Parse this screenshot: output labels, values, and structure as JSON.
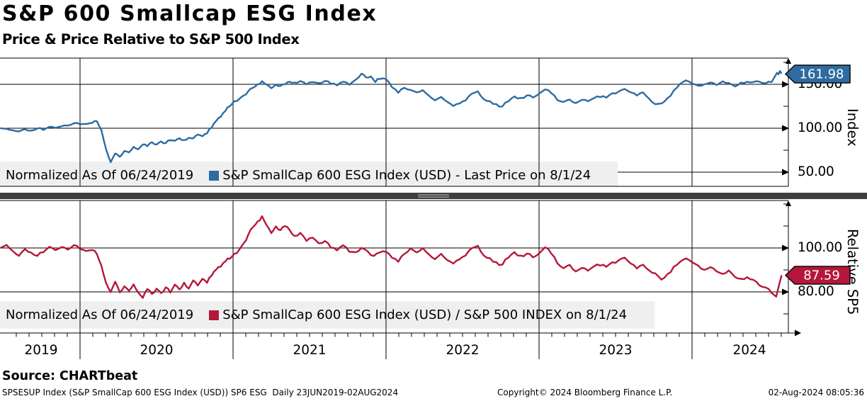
{
  "header": {
    "title": "S&P 600 Smallcap ESG Index",
    "subtitle": "Price & Price Relative to S&P 500 Index"
  },
  "panels": {
    "top": {
      "axis_title": "Index",
      "y_tick_labels": [
        "150.00",
        "100.00",
        "50.00"
      ],
      "last_price_label": "161.98",
      "line_color": "#2d6ba1",
      "legend": {
        "prefix": "Normalized As Of 06/24/2019",
        "series_label": "S&P SmallCap 600 ESG Index (USD) - Last Price on 8/1/24"
      }
    },
    "bottom": {
      "axis_title": "Relative SP5",
      "y_tick_labels": [
        "100.00",
        "80.00"
      ],
      "last_price_label": "87.59",
      "line_color": "#b5173a",
      "legend": {
        "prefix": "Normalized As Of 06/24/2019",
        "series_label": "S&P SmallCap 600 ESG Index (USD) / S&P 500 INDEX on 8/1/24"
      }
    }
  },
  "x_axis": {
    "year_labels": [
      "2019",
      "2020",
      "2021",
      "2022",
      "2023",
      "2024"
    ]
  },
  "footer": {
    "source": "Source: CHARTbeat",
    "descriptor": "SPSESUP Index (S&P SmallCap 600 ESG Index (USD)) SP6 ESG  Daily 23JUN2019-02AUG2024",
    "copyright": "Copyright© 2024 Bloomberg Finance L.P.",
    "timestamp": "02-Aug-2024 08:05:36"
  },
  "chart_data": [
    {
      "type": "line",
      "title": "S&P SmallCap 600 ESG Index (USD) - Last Price",
      "normalized_as_of": "06/24/2019",
      "x_unit": "decimal_year",
      "x_range": [
        2019.48,
        2024.585
      ],
      "ylim": [
        30,
        180
      ],
      "y_ticks": [
        50,
        100,
        150
      ],
      "grid": true,
      "legend_position": "bottom-left",
      "last_value": 161.98,
      "color": "#2d6ba1",
      "points": [
        [
          2019.48,
          100
        ],
        [
          2019.52,
          99.5
        ],
        [
          2019.56,
          97.5
        ],
        [
          2019.6,
          96.5
        ],
        [
          2019.64,
          99
        ],
        [
          2019.68,
          97.5
        ],
        [
          2019.72,
          100
        ],
        [
          2019.76,
          99
        ],
        [
          2019.8,
          101.5
        ],
        [
          2019.84,
          100.5
        ],
        [
          2019.88,
          102.5
        ],
        [
          2019.92,
          103.5
        ],
        [
          2019.96,
          105
        ],
        [
          2020.0,
          105.5
        ],
        [
          2020.04,
          104.5
        ],
        [
          2020.08,
          107
        ],
        [
          2020.11,
          107.5
        ],
        [
          2020.14,
          98
        ],
        [
          2020.17,
          76
        ],
        [
          2020.2,
          61.5
        ],
        [
          2020.23,
          71
        ],
        [
          2020.26,
          67
        ],
        [
          2020.29,
          75
        ],
        [
          2020.32,
          72.5
        ],
        [
          2020.35,
          79
        ],
        [
          2020.38,
          76.5
        ],
        [
          2020.41,
          82
        ],
        [
          2020.44,
          80
        ],
        [
          2020.47,
          84
        ],
        [
          2020.5,
          81.5
        ],
        [
          2020.53,
          85
        ],
        [
          2020.56,
          83
        ],
        [
          2020.59,
          87
        ],
        [
          2020.62,
          85
        ],
        [
          2020.65,
          88.5
        ],
        [
          2020.68,
          86
        ],
        [
          2020.71,
          90
        ],
        [
          2020.74,
          88
        ],
        [
          2020.77,
          93
        ],
        [
          2020.8,
          91
        ],
        [
          2020.83,
          95
        ],
        [
          2020.86,
          101
        ],
        [
          2020.89,
          108
        ],
        [
          2020.92,
          114
        ],
        [
          2020.95,
          120
        ],
        [
          2020.98,
          126
        ],
        [
          2021.01,
          130
        ],
        [
          2021.04,
          133
        ],
        [
          2021.07,
          137
        ],
        [
          2021.1,
          142
        ],
        [
          2021.13,
          147
        ],
        [
          2021.16,
          150
        ],
        [
          2021.19,
          152.5
        ],
        [
          2021.22,
          149
        ],
        [
          2021.25,
          146
        ],
        [
          2021.28,
          150
        ],
        [
          2021.31,
          148
        ],
        [
          2021.34,
          151
        ],
        [
          2021.37,
          153.5
        ],
        [
          2021.4,
          151
        ],
        [
          2021.44,
          153
        ],
        [
          2021.48,
          150.5
        ],
        [
          2021.52,
          153
        ],
        [
          2021.56,
          151
        ],
        [
          2021.6,
          154.5
        ],
        [
          2021.64,
          151.5
        ],
        [
          2021.68,
          149
        ],
        [
          2021.72,
          152.5
        ],
        [
          2021.76,
          150
        ],
        [
          2021.8,
          154
        ],
        [
          2021.84,
          163
        ],
        [
          2021.87,
          157.5
        ],
        [
          2021.9,
          160
        ],
        [
          2021.93,
          153.5
        ],
        [
          2021.96,
          157
        ],
        [
          2022.0,
          155.5
        ],
        [
          2022.04,
          146.5
        ],
        [
          2022.08,
          141
        ],
        [
          2022.12,
          146.5
        ],
        [
          2022.16,
          143
        ],
        [
          2022.2,
          140
        ],
        [
          2022.24,
          143.5
        ],
        [
          2022.28,
          137
        ],
        [
          2022.32,
          132
        ],
        [
          2022.36,
          135
        ],
        [
          2022.4,
          129
        ],
        [
          2022.44,
          125.5
        ],
        [
          2022.48,
          128.5
        ],
        [
          2022.52,
          132.5
        ],
        [
          2022.56,
          138.5
        ],
        [
          2022.6,
          141
        ],
        [
          2022.64,
          134
        ],
        [
          2022.68,
          130
        ],
        [
          2022.72,
          126.5
        ],
        [
          2022.76,
          125
        ],
        [
          2022.8,
          131.5
        ],
        [
          2022.84,
          136
        ],
        [
          2022.88,
          133.5
        ],
        [
          2022.92,
          137.5
        ],
        [
          2022.96,
          135.5
        ],
        [
          2023.0,
          138.5
        ],
        [
          2023.04,
          144.5
        ],
        [
          2023.08,
          141
        ],
        [
          2023.12,
          133
        ],
        [
          2023.16,
          129.5
        ],
        [
          2023.2,
          132
        ],
        [
          2023.24,
          129
        ],
        [
          2023.28,
          132.5
        ],
        [
          2023.32,
          130.5
        ],
        [
          2023.36,
          134
        ],
        [
          2023.4,
          136.5
        ],
        [
          2023.44,
          135
        ],
        [
          2023.48,
          139
        ],
        [
          2023.52,
          142
        ],
        [
          2023.56,
          144.5
        ],
        [
          2023.6,
          141
        ],
        [
          2023.64,
          138
        ],
        [
          2023.68,
          140
        ],
        [
          2023.72,
          133
        ],
        [
          2023.76,
          126.5
        ],
        [
          2023.8,
          128
        ],
        [
          2023.84,
          134
        ],
        [
          2023.88,
          142
        ],
        [
          2023.92,
          150
        ],
        [
          2023.96,
          154
        ],
        [
          2024.0,
          152
        ],
        [
          2024.04,
          147.5
        ],
        [
          2024.08,
          150
        ],
        [
          2024.12,
          152.5
        ],
        [
          2024.16,
          149.5
        ],
        [
          2024.2,
          153
        ],
        [
          2024.24,
          151
        ],
        [
          2024.28,
          148
        ],
        [
          2024.32,
          151
        ],
        [
          2024.36,
          153.5
        ],
        [
          2024.4,
          151.5
        ],
        [
          2024.44,
          154
        ],
        [
          2024.48,
          151
        ],
        [
          2024.52,
          153.5
        ],
        [
          2024.54,
          159
        ],
        [
          2024.555,
          163.5
        ],
        [
          2024.565,
          160.5
        ],
        [
          2024.575,
          165.5
        ],
        [
          2024.585,
          161.98
        ]
      ]
    },
    {
      "type": "line",
      "title": "S&P SmallCap 600 ESG Index (USD) / S&P 500 INDEX",
      "normalized_as_of": "06/24/2019",
      "x_unit": "decimal_year",
      "x_range": [
        2019.48,
        2024.585
      ],
      "ylim": [
        62,
        121
      ],
      "y_ticks": [
        80,
        100
      ],
      "grid": true,
      "legend_position": "bottom-left",
      "last_value": 87.59,
      "color": "#b5173a",
      "points": [
        [
          2019.48,
          100
        ],
        [
          2019.52,
          101.5
        ],
        [
          2019.56,
          98.5
        ],
        [
          2019.6,
          96.5
        ],
        [
          2019.64,
          99.5
        ],
        [
          2019.68,
          98
        ],
        [
          2019.72,
          96.5
        ],
        [
          2019.76,
          98.5
        ],
        [
          2019.8,
          100.5
        ],
        [
          2019.84,
          99
        ],
        [
          2019.88,
          100.5
        ],
        [
          2019.92,
          99.5
        ],
        [
          2019.96,
          101
        ],
        [
          2020.0,
          100
        ],
        [
          2020.04,
          98.5
        ],
        [
          2020.08,
          99.5
        ],
        [
          2020.11,
          97
        ],
        [
          2020.14,
          92
        ],
        [
          2020.17,
          84
        ],
        [
          2020.2,
          80
        ],
        [
          2020.23,
          84.5
        ],
        [
          2020.26,
          79.5
        ],
        [
          2020.29,
          83
        ],
        [
          2020.32,
          80.5
        ],
        [
          2020.35,
          83.5
        ],
        [
          2020.38,
          80
        ],
        [
          2020.41,
          77.5
        ],
        [
          2020.44,
          81.5
        ],
        [
          2020.47,
          79
        ],
        [
          2020.5,
          81.5
        ],
        [
          2020.53,
          79.5
        ],
        [
          2020.56,
          82
        ],
        [
          2020.59,
          80
        ],
        [
          2020.62,
          83
        ],
        [
          2020.65,
          81
        ],
        [
          2020.68,
          84
        ],
        [
          2020.71,
          82
        ],
        [
          2020.74,
          85
        ],
        [
          2020.77,
          83
        ],
        [
          2020.8,
          86
        ],
        [
          2020.83,
          84.5
        ],
        [
          2020.86,
          87.5
        ],
        [
          2020.89,
          90
        ],
        [
          2020.92,
          92
        ],
        [
          2020.95,
          94
        ],
        [
          2020.98,
          95.5
        ],
        [
          2021.01,
          97
        ],
        [
          2021.04,
          99
        ],
        [
          2021.07,
          102
        ],
        [
          2021.1,
          106
        ],
        [
          2021.13,
          110
        ],
        [
          2021.16,
          112
        ],
        [
          2021.19,
          114
        ],
        [
          2021.22,
          110
        ],
        [
          2021.25,
          107
        ],
        [
          2021.28,
          110
        ],
        [
          2021.31,
          108
        ],
        [
          2021.34,
          110.5
        ],
        [
          2021.37,
          108.5
        ],
        [
          2021.4,
          105
        ],
        [
          2021.44,
          106.5
        ],
        [
          2021.48,
          103.5
        ],
        [
          2021.52,
          105
        ],
        [
          2021.56,
          102
        ],
        [
          2021.6,
          103.5
        ],
        [
          2021.64,
          100.5
        ],
        [
          2021.68,
          99
        ],
        [
          2021.72,
          101
        ],
        [
          2021.76,
          98.5
        ],
        [
          2021.8,
          97.5
        ],
        [
          2021.84,
          100.5
        ],
        [
          2021.88,
          98
        ],
        [
          2021.92,
          96.5
        ],
        [
          2021.96,
          98.5
        ],
        [
          2022.0,
          98
        ],
        [
          2022.04,
          95.5
        ],
        [
          2022.08,
          94
        ],
        [
          2022.12,
          97.5
        ],
        [
          2022.16,
          99.5
        ],
        [
          2022.2,
          97.5
        ],
        [
          2022.24,
          100
        ],
        [
          2022.28,
          97
        ],
        [
          2022.32,
          95
        ],
        [
          2022.36,
          97
        ],
        [
          2022.4,
          94
        ],
        [
          2022.44,
          93
        ],
        [
          2022.48,
          95
        ],
        [
          2022.52,
          97
        ],
        [
          2022.56,
          99.5
        ],
        [
          2022.6,
          100.5
        ],
        [
          2022.64,
          97
        ],
        [
          2022.68,
          95
        ],
        [
          2022.72,
          93
        ],
        [
          2022.76,
          92.5
        ],
        [
          2022.8,
          96
        ],
        [
          2022.84,
          98
        ],
        [
          2022.88,
          96
        ],
        [
          2022.92,
          97.5
        ],
        [
          2022.96,
          96
        ],
        [
          2023.0,
          97
        ],
        [
          2023.04,
          100.5
        ],
        [
          2023.08,
          98
        ],
        [
          2023.12,
          93.5
        ],
        [
          2023.16,
          90.5
        ],
        [
          2023.2,
          92
        ],
        [
          2023.24,
          89.5
        ],
        [
          2023.28,
          91
        ],
        [
          2023.32,
          89.5
        ],
        [
          2023.36,
          91.5
        ],
        [
          2023.4,
          92.5
        ],
        [
          2023.44,
          91.5
        ],
        [
          2023.48,
          93
        ],
        [
          2023.52,
          94.5
        ],
        [
          2023.56,
          95.5
        ],
        [
          2023.6,
          93
        ],
        [
          2023.64,
          91
        ],
        [
          2023.68,
          92
        ],
        [
          2023.72,
          89.5
        ],
        [
          2023.76,
          88
        ],
        [
          2023.8,
          85.5
        ],
        [
          2023.84,
          88
        ],
        [
          2023.88,
          91
        ],
        [
          2023.92,
          93.5
        ],
        [
          2023.96,
          95
        ],
        [
          2024.0,
          94
        ],
        [
          2024.04,
          91.5
        ],
        [
          2024.08,
          90
        ],
        [
          2024.12,
          91.5
        ],
        [
          2024.16,
          89.5
        ],
        [
          2024.2,
          88
        ],
        [
          2024.24,
          89.5
        ],
        [
          2024.28,
          87
        ],
        [
          2024.32,
          85.5
        ],
        [
          2024.36,
          87
        ],
        [
          2024.4,
          85
        ],
        [
          2024.44,
          83.5
        ],
        [
          2024.48,
          82
        ],
        [
          2024.52,
          80
        ],
        [
          2024.55,
          78
        ],
        [
          2024.57,
          83.5
        ],
        [
          2024.585,
          87.59
        ]
      ]
    }
  ]
}
